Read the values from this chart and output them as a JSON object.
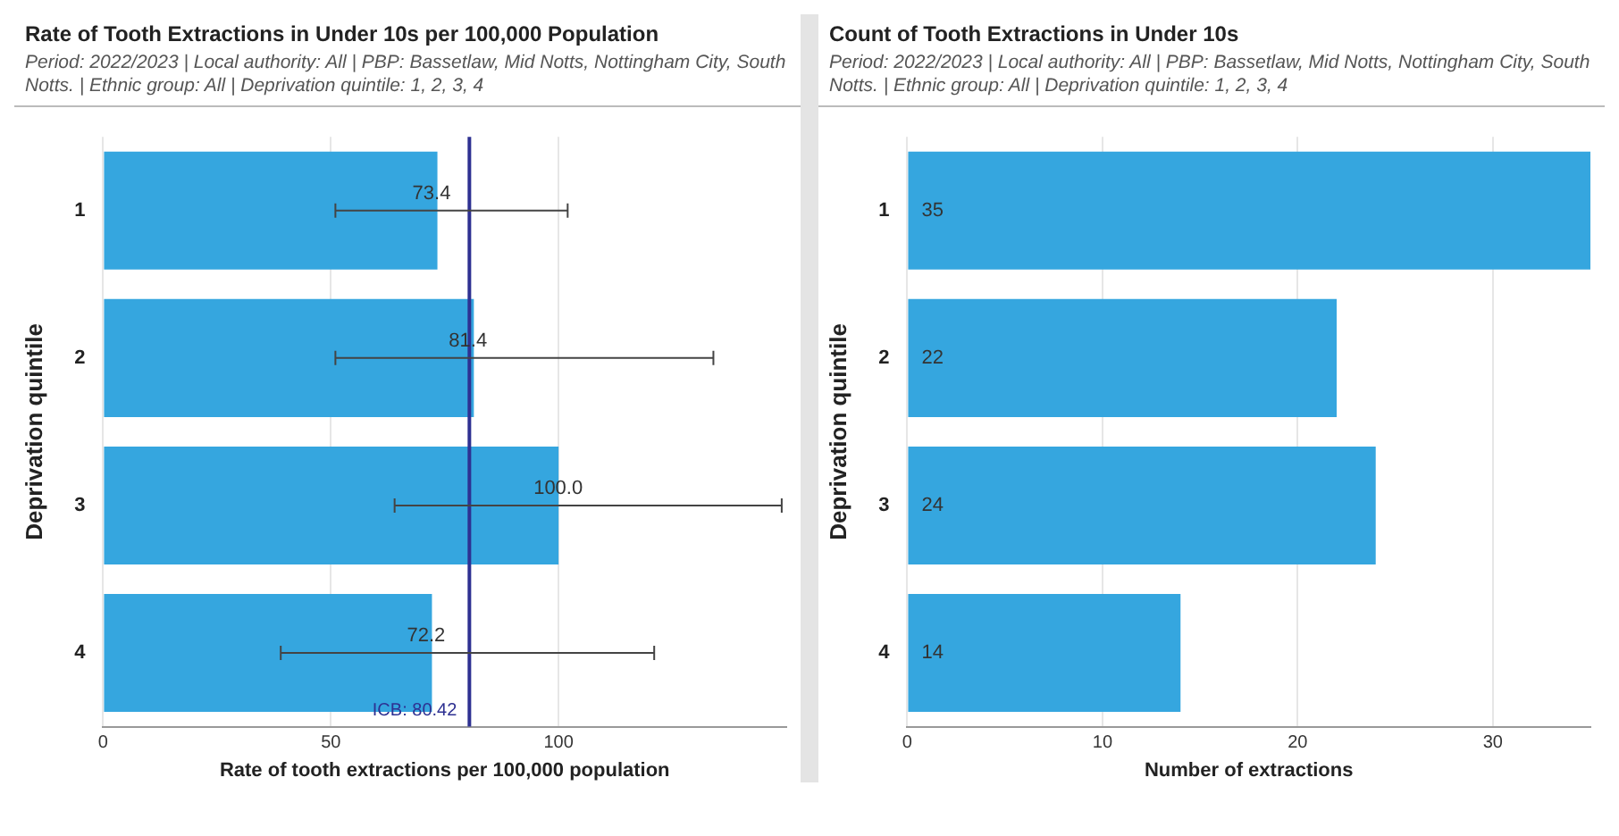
{
  "chart_data": [
    {
      "type": "bar",
      "orientation": "horizontal",
      "title": "Rate of Tooth Extractions in Under 10s per 100,000 Population",
      "subtitle": "Period: 2022/2023 | Local authority: All | PBP: Bassetlaw, Mid Notts, Nottingham City, South Notts. | Ethnic group: All | Deprivation quintile: 1, 2, 3, 4",
      "xlabel": "Rate of tooth extractions per 100,000 population",
      "ylabel": "Deprivation quintile",
      "categories": [
        "1",
        "2",
        "3",
        "4"
      ],
      "values": [
        73.4,
        81.4,
        100.0,
        72.2
      ],
      "color": "#35a6df",
      "value_labels": [
        "73.4",
        "81.4",
        "100.0",
        "72.2"
      ],
      "errors": [
        [
          51,
          102
        ],
        [
          51,
          134
        ],
        [
          64,
          149
        ],
        [
          39,
          121
        ]
      ],
      "xlim": [
        0,
        150
      ],
      "xticks": [
        0,
        50,
        100
      ],
      "grid": "x",
      "ref_lines": [
        {
          "axis": "x",
          "value": 80.42,
          "label": "ICB: 80.42",
          "color": "#2e3192"
        }
      ]
    },
    {
      "type": "bar",
      "orientation": "horizontal",
      "title": "Count of Tooth Extractions in Under 10s",
      "subtitle": "Period: 2022/2023 | Local authority: All | PBP: Bassetlaw, Mid Notts, Nottingham City, South Notts. | Ethnic group: All | Deprivation quintile: 1, 2, 3, 4",
      "xlabel": "Number of extractions",
      "ylabel": "Deprivation quintile",
      "categories": [
        "1",
        "2",
        "3",
        "4"
      ],
      "values": [
        35,
        22,
        24,
        14
      ],
      "color": "#35a6df",
      "data_labels": true,
      "xlim": [
        0,
        35
      ],
      "xticks": [
        0,
        10,
        20,
        30
      ],
      "grid": "x"
    }
  ]
}
